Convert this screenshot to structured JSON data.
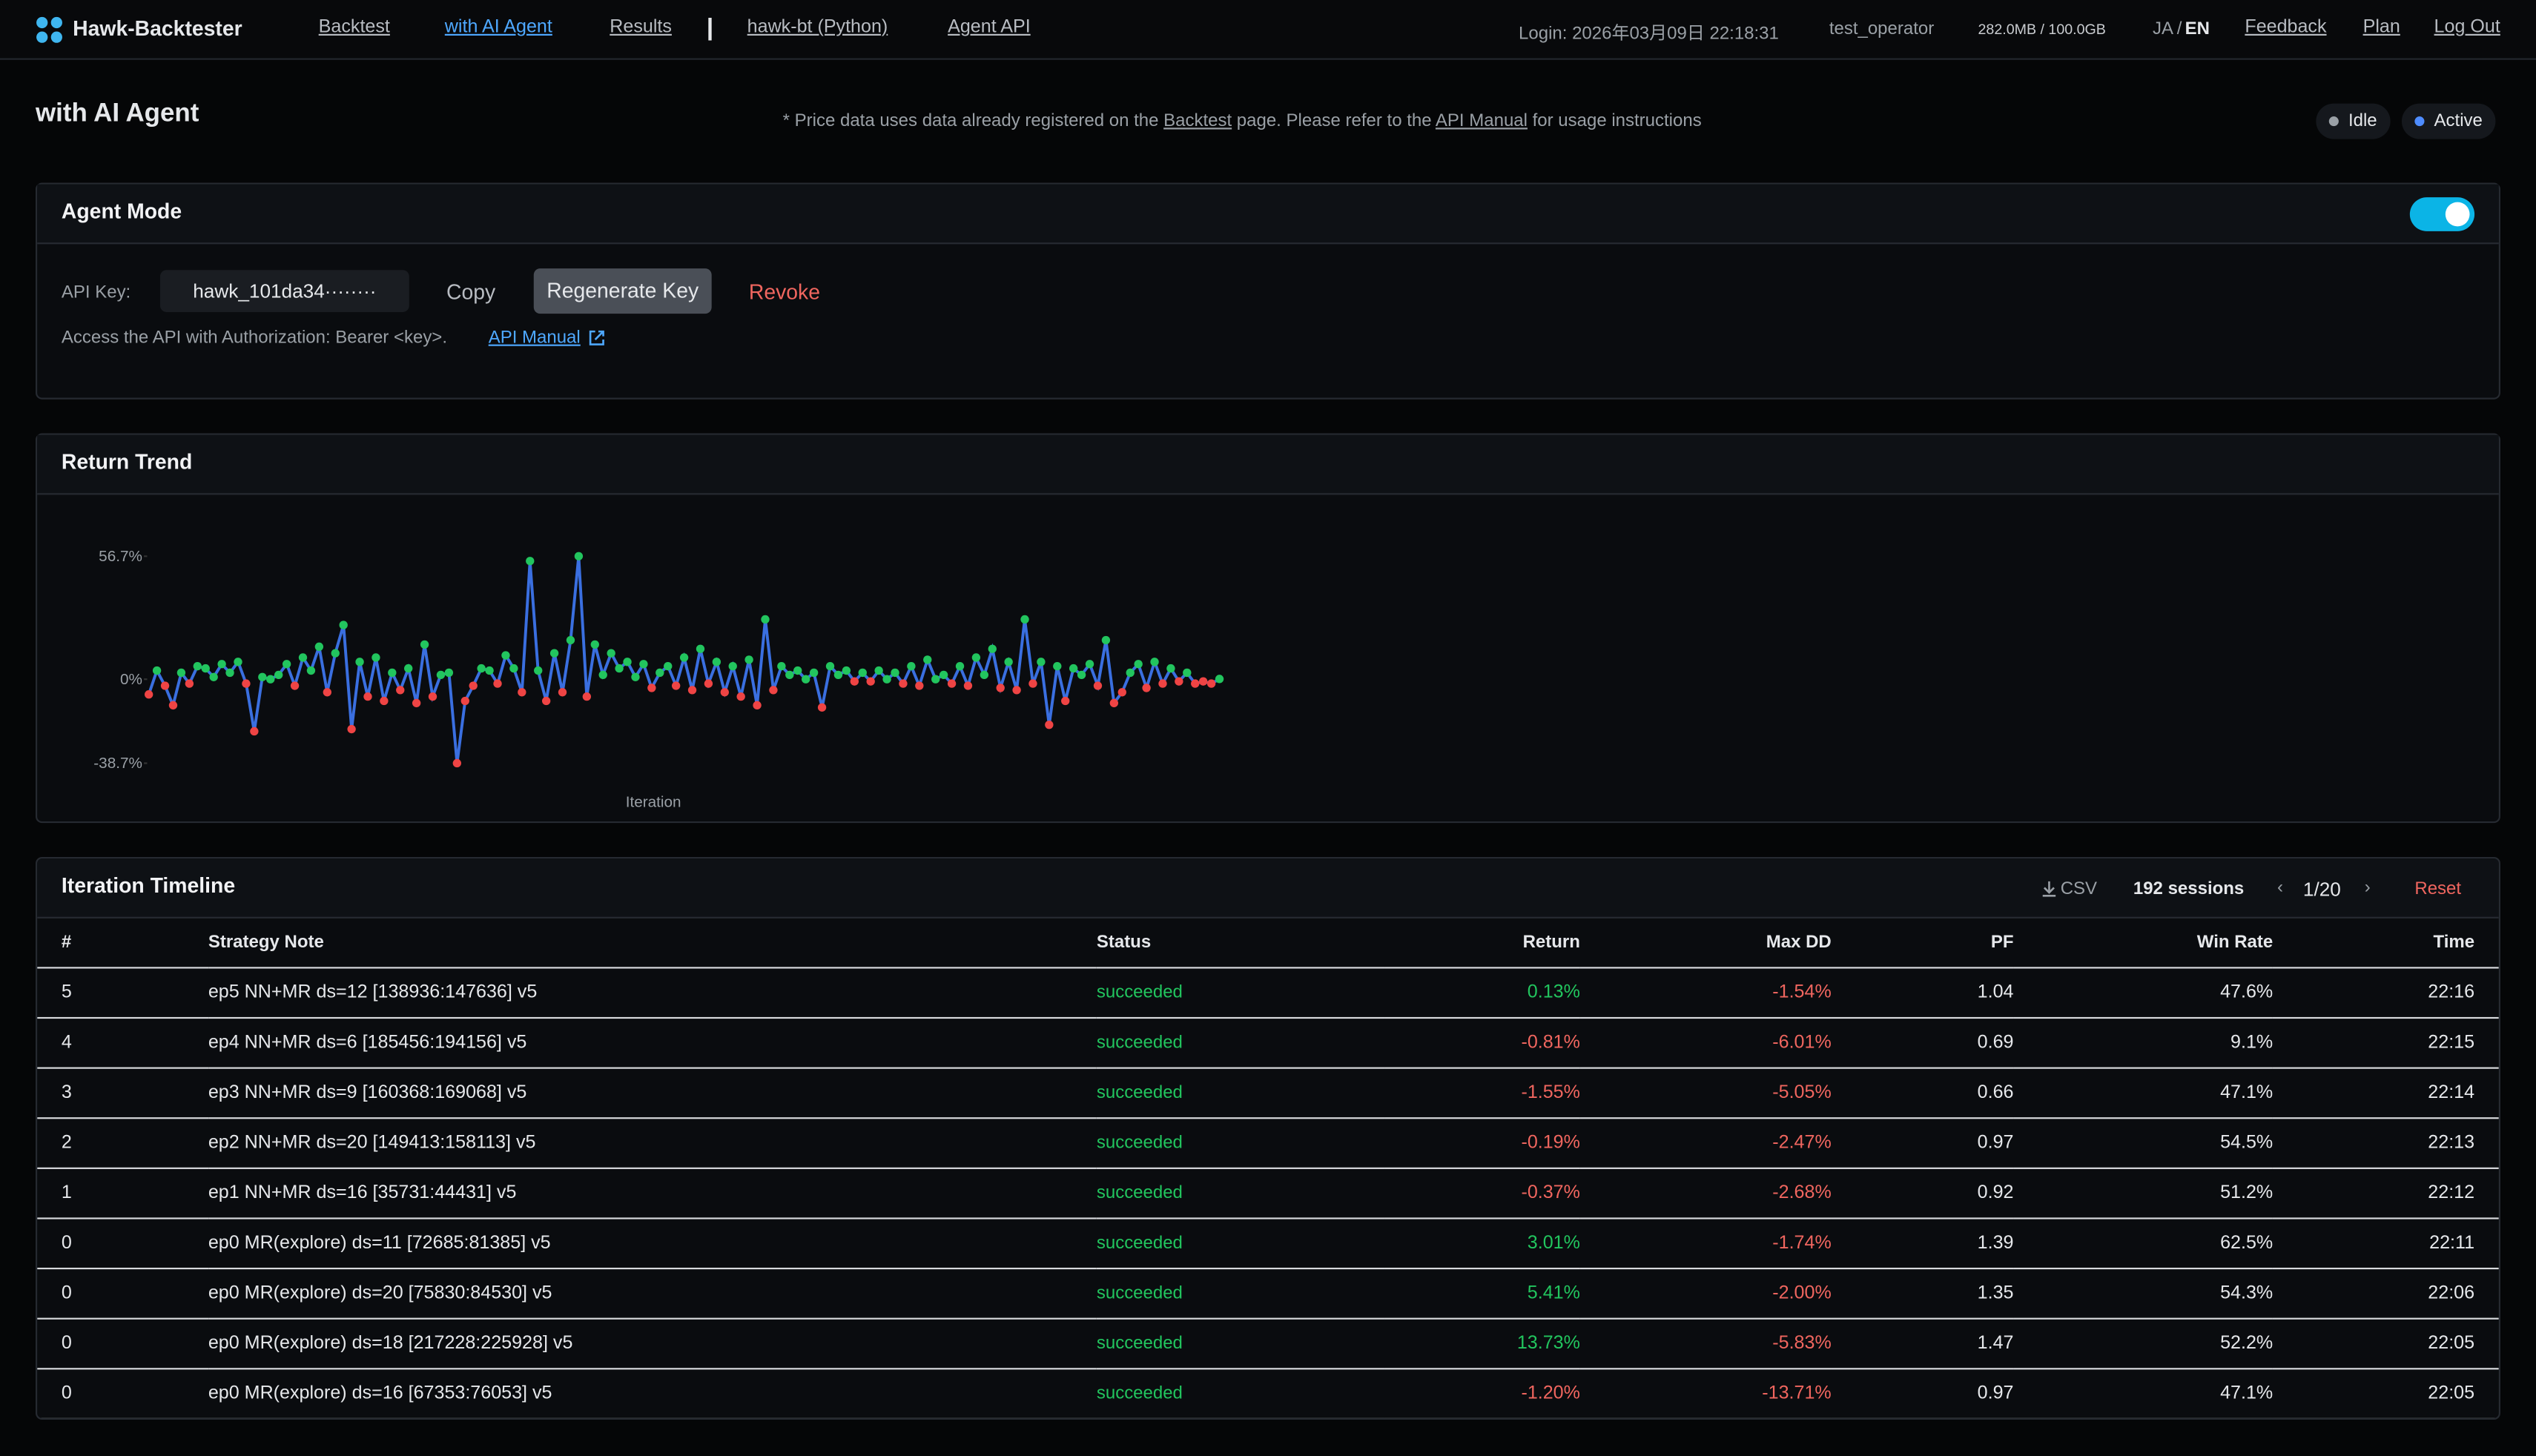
{
  "nav": {
    "brand": "Hawk-Backtester",
    "links": [
      "Backtest",
      "with AI Agent",
      "Results",
      "hawk-bt (Python)",
      "Agent API"
    ],
    "login": "Login: 2026年03月09日 22:18:31",
    "user": "test_operator",
    "storage": "282.0MB / 100.0GB",
    "lang": [
      "JA",
      "/",
      "EN"
    ],
    "right_links": [
      "Feedback",
      "Plan",
      "Log Out"
    ]
  },
  "page": {
    "title": "with AI Agent",
    "notice": [
      "* Price data uses data already registered on the ",
      "Backtest",
      " page. Please refer to the ",
      "API Manual",
      " for usage instructions"
    ],
    "status": [
      "Idle",
      "Active"
    ]
  },
  "agent_mode": {
    "title": "Agent Mode",
    "enabled": true,
    "api_key_label": "API Key:",
    "api_key": "hawk_101da34········",
    "buttons": [
      "Copy",
      "Regenerate Key",
      "Revoke"
    ],
    "help": "Access the API with Authorization: Bearer <key>.",
    "help_link": "API Manual"
  },
  "chart_data": {
    "type": "line",
    "title": "Return Trend",
    "xlabel": "Iteration",
    "line_color": "#3a6fe0",
    "positive_color": "#22c55e",
    "negative_color": "#ef4444",
    "ylim": [
      -38.7,
      56.7
    ],
    "yticks": [
      {
        "value": 56.7,
        "label": "56.7%"
      },
      {
        "value": 0,
        "label": "0%"
      },
      {
        "value": -38.7,
        "label": "-38.7%"
      }
    ],
    "values": [
      -7,
      4,
      -3,
      -12,
      3,
      -2,
      6,
      5,
      1,
      7,
      3,
      8,
      -2,
      -24,
      1,
      0,
      2,
      7,
      -3,
      10,
      4,
      15,
      -6,
      12,
      25,
      -23,
      8,
      -8,
      10,
      -10,
      3,
      -5,
      5,
      -11,
      16,
      -8,
      2,
      3,
      -38.7,
      -10,
      -3,
      5,
      4,
      -2,
      11,
      5,
      -6,
      54.5,
      4,
      -10,
      12,
      -6,
      18,
      56.7,
      -8,
      16,
      2,
      12,
      5,
      8,
      1,
      7,
      -4,
      3,
      6,
      -3,
      10,
      -5,
      14,
      -2,
      8,
      -6,
      6,
      -8,
      9,
      -12,
      27.6,
      -5,
      6,
      2,
      4,
      0,
      3,
      -13,
      6,
      2,
      4,
      -1,
      3,
      -1,
      4,
      0,
      3,
      -2,
      6,
      -3,
      9,
      0,
      2,
      -2,
      6,
      -3,
      10,
      2,
      14,
      -4,
      8,
      -5,
      27.6,
      -2,
      8,
      -21,
      6,
      -10,
      5,
      2,
      7,
      -3,
      18,
      -11,
      -6,
      3,
      7,
      -4,
      8,
      -2,
      5,
      -1,
      3,
      -2,
      -1,
      -2,
      0.13
    ]
  },
  "timeline": {
    "title": "Iteration Timeline",
    "csv": "CSV",
    "sessions": "192 sessions",
    "prev": "‹",
    "page": "1/20",
    "next": "›",
    "reset": "Reset",
    "columns": [
      "#",
      "Strategy Note",
      "Status",
      "Return",
      "Max DD",
      "PF",
      "Win Rate",
      "Time"
    ],
    "rows": [
      [
        "5",
        "ep5 NN+MR ds=12 [138936:147636] v5",
        "succeeded",
        "0.13%",
        "-1.54%",
        "1.04",
        "47.6%",
        "22:16"
      ],
      [
        "4",
        "ep4 NN+MR ds=6 [185456:194156] v5",
        "succeeded",
        "-0.81%",
        "-6.01%",
        "0.69",
        "9.1%",
        "22:15"
      ],
      [
        "3",
        "ep3 NN+MR ds=9 [160368:169068] v5",
        "succeeded",
        "-1.55%",
        "-5.05%",
        "0.66",
        "47.1%",
        "22:14"
      ],
      [
        "2",
        "ep2 NN+MR ds=20 [149413:158113] v5",
        "succeeded",
        "-0.19%",
        "-2.47%",
        "0.97",
        "54.5%",
        "22:13"
      ],
      [
        "1",
        "ep1 NN+MR ds=16 [35731:44431] v5",
        "succeeded",
        "-0.37%",
        "-2.68%",
        "0.92",
        "51.2%",
        "22:12"
      ],
      [
        "0",
        "ep0 MR(explore) ds=11 [72685:81385] v5",
        "succeeded",
        "3.01%",
        "-1.74%",
        "1.39",
        "62.5%",
        "22:11"
      ],
      [
        "0",
        "ep0 MR(explore) ds=20 [75830:84530] v5",
        "succeeded",
        "5.41%",
        "-2.00%",
        "1.35",
        "54.3%",
        "22:06"
      ],
      [
        "0",
        "ep0 MR(explore) ds=18 [217228:225928] v5",
        "succeeded",
        "13.73%",
        "-5.83%",
        "1.47",
        "52.2%",
        "22:05"
      ],
      [
        "0",
        "ep0 MR(explore) ds=16 [67353:76053] v5",
        "succeeded",
        "-1.20%",
        "-13.71%",
        "0.97",
        "47.1%",
        "22:05"
      ]
    ]
  }
}
